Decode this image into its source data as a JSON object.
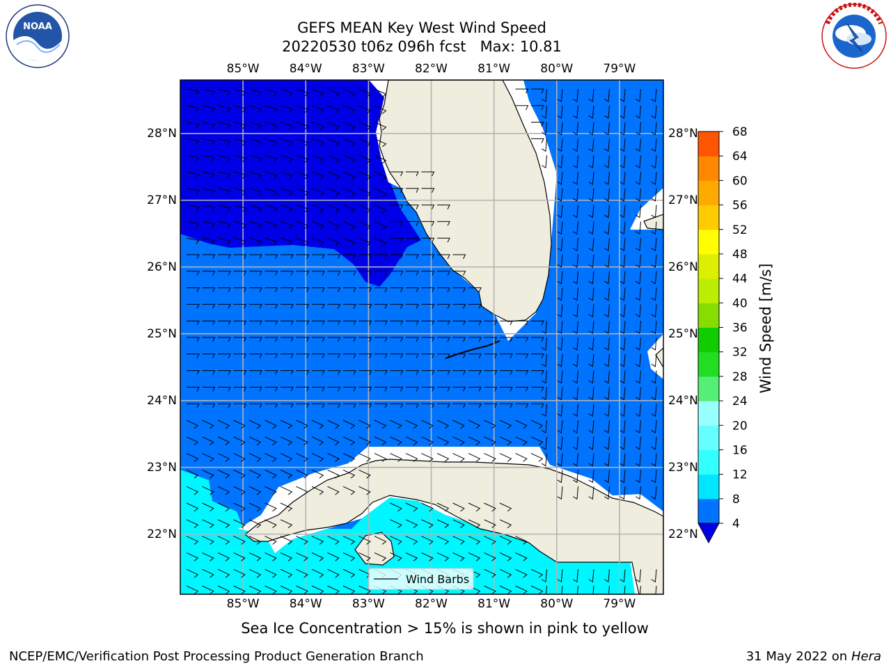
{
  "title_line1": "GEFS MEAN Key West Wind Speed",
  "title_line2": "20220530 t06z 096h fcst   Max: 10.81",
  "subtitle": "Sea Ice Concentration > 15% is shown in pink to yellow",
  "footer_left": "NCEP/EMC/Verification Post Processing Product Generation Branch",
  "footer_right_date": "31 May 2022 on",
  "footer_right_host": "Hera",
  "logos": {
    "left": {
      "icon": "noaa-logo",
      "text": "NOAA",
      "ring_text": "NATIONAL OCEANIC AND ATMOSPHERIC ADMINISTRATION · U.S. DEPARTMENT OF COMMERCE"
    },
    "right": {
      "icon": "nws-logo",
      "ring_text": "NATIONAL WEATHER SERVICE"
    }
  },
  "map": {
    "lon_ticks": [
      "85°W",
      "84°W",
      "83°W",
      "82°W",
      "81°W",
      "80°W",
      "79°W"
    ],
    "lat_ticks": [
      "28°N",
      "27°N",
      "26°N",
      "25°N",
      "24°N",
      "23°N",
      "22°N"
    ],
    "lon_values": [
      -85,
      -84,
      -83,
      -82,
      -81,
      -80,
      -79
    ],
    "lat_values": [
      28,
      27,
      26,
      25,
      24,
      23,
      22
    ],
    "extent": {
      "lon_min": -86,
      "lon_max": -78.3,
      "lat_min": 21.1,
      "lat_max": 28.8
    },
    "legend_label": "Wind Barbs",
    "colors": {
      "land": "#efedde",
      "ocean_dark": "#0000e6",
      "ocean_mid": "#0073ff",
      "ocean_light": "#00f7ff",
      "grid": "#b3b3b3"
    }
  },
  "colorbar": {
    "label": "Wind Speed [m/s]",
    "levels": [
      "4",
      "8",
      "12",
      "16",
      "20",
      "24",
      "28",
      "32",
      "36",
      "40",
      "44",
      "48",
      "52",
      "56",
      "60",
      "64",
      "68"
    ],
    "colors": [
      "#0073ff",
      "#00e6ff",
      "#33ffff",
      "#66ffff",
      "#99ffff",
      "#55ee77",
      "#22dd22",
      "#11cc00",
      "#88dd00",
      "#bbee00",
      "#ddee00",
      "#ffff00",
      "#ffcc00",
      "#ffaa00",
      "#ff8800",
      "#ff5500",
      "#ff2200",
      "#ff0000"
    ],
    "under_color": "#0000e6"
  }
}
